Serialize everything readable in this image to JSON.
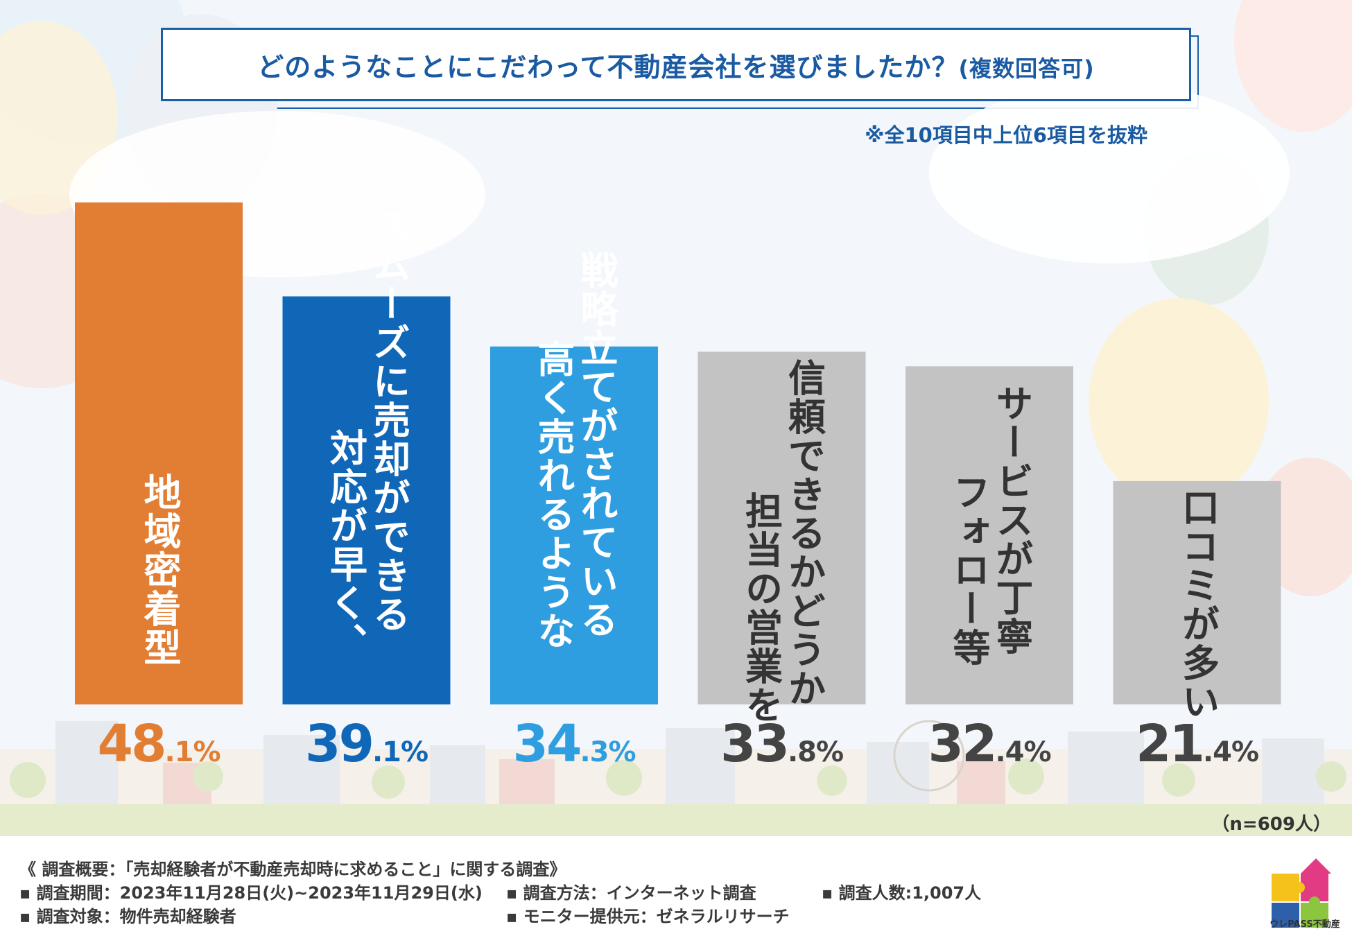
{
  "header": {
    "title": "どのようなことにこだわって不動産会社を選びましたか？",
    "title_suffix": "(複数回答可)",
    "note": "※全10項目中上位6項目を抜粋"
  },
  "chart_data": {
    "type": "bar",
    "title": "どのようなことにこだわって不動産会社を選びましたか？(複数回答可)",
    "unit": "%",
    "ylim": [
      0,
      50
    ],
    "categories": [
      "地域密着型",
      "スムーズに売却ができる対応が早く、",
      "戦略立てがされている高く売れるような",
      "信頼できるかどうか担当の営業を",
      "サービスが丁寧フォロー等",
      "口コミが多い"
    ],
    "label_columns": [
      [
        "地域密着型"
      ],
      [
        "スムーズに売却ができる",
        "対応が早く、"
      ],
      [
        "戦略立てがされている",
        "高く売れるような"
      ],
      [
        "信頼できるかどうか",
        "担当の営業を"
      ],
      [
        "サービスが丁寧",
        "フォロー等"
      ],
      [
        "口コミが多い"
      ]
    ],
    "values": [
      48.1,
      39.1,
      34.3,
      33.8,
      32.4,
      21.4
    ],
    "value_labels": [
      {
        "big": "48",
        "small": ".1%"
      },
      {
        "big": "39",
        "small": ".1%"
      },
      {
        "big": "34",
        "small": ".3%"
      },
      {
        "big": "33",
        "small": ".8%"
      },
      {
        "big": "32",
        "small": ".4%"
      },
      {
        "big": "21",
        "small": ".4%"
      }
    ],
    "bar_colors": [
      "#e27e34",
      "#1067b8",
      "#2f9ee0",
      "#c3c3c3",
      "#c3c3c3",
      "#c3c3c3"
    ],
    "label_colors": [
      "#ffffff",
      "#ffffff",
      "#ffffff",
      "#333333",
      "#333333",
      "#333333"
    ],
    "value_colors": [
      "#e27e34",
      "#1067b8",
      "#2f9ee0",
      "#444444",
      "#444444",
      "#444444"
    ]
  },
  "sample_size": "（n=609人）",
  "survey": {
    "overview": "《 調査概要：「売却経験者が不動産売却時に求めること」に関する調査》",
    "period": "▪ 調査期間：2023年11月28日(火)~2023年11月29日(水)",
    "target": "▪ 調査対象：物件売却経験者",
    "method": "▪ 調査方法：インターネット調査",
    "provider": "▪ モニター提供元：ゼネラルリサーチ",
    "count": "▪ 調査人数:1,007人"
  },
  "logo": {
    "text": "ウレPASS不動産"
  },
  "colors": {
    "accent": "#1a5aa2"
  }
}
